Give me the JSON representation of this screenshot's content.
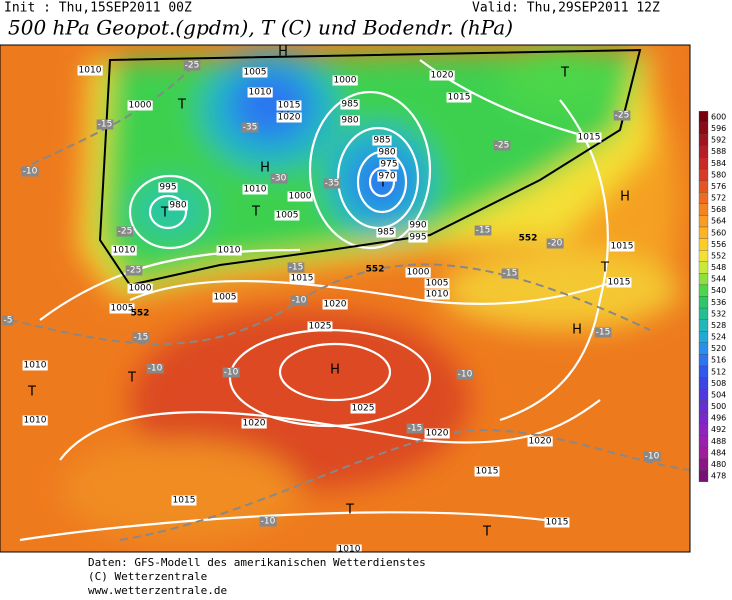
{
  "header": {
    "init": "Init : Thu,15SEP2011 00Z",
    "valid": "Valid: Thu,29SEP2011 12Z",
    "title": "500 hPa Geopot.(gpdm), T (C) und Bodendr. (hPa)"
  },
  "map": {
    "centers": [
      "H",
      "H",
      "H",
      "T",
      "T",
      "T",
      "T",
      "T",
      "H",
      "T",
      "H",
      "H",
      "T",
      "T",
      "T",
      "T"
    ],
    "isobar_labels": [
      "1010",
      "1000",
      "1005",
      "1010",
      "1015",
      "1020",
      "1000",
      "985",
      "980",
      "985",
      "980",
      "975",
      "970",
      "995",
      "980",
      "1010",
      "1000",
      "1005",
      "985",
      "990",
      "995",
      "1000",
      "1005",
      "1010",
      "1020",
      "1015",
      "1015",
      "1010",
      "1005",
      "1015",
      "1020",
      "1025",
      "1010",
      "1000",
      "1005",
      "1010",
      "1010",
      "1025",
      "1020",
      "1020",
      "1020",
      "1015",
      "1015",
      "1015",
      "1015",
      "1015",
      "1010"
    ],
    "temperature_labels": [
      "-25",
      "-15",
      "-10",
      "-25",
      "-25",
      "-35",
      "-30",
      "-35",
      "-25",
      "-25",
      "-20",
      "-15",
      "-15",
      "-10",
      "-15",
      "-10",
      "-10",
      "-15",
      "-15",
      "-10",
      "-10",
      "-10",
      "-15",
      "-5"
    ],
    "contour_labels": [
      "552",
      "552",
      "552"
    ]
  },
  "legend": {
    "labels": [
      "600",
      "596",
      "592",
      "588",
      "584",
      "580",
      "576",
      "572",
      "568",
      "564",
      "560",
      "556",
      "552",
      "548",
      "544",
      "540",
      "536",
      "532",
      "528",
      "524",
      "520",
      "516",
      "512",
      "508",
      "504",
      "500",
      "496",
      "492",
      "488",
      "484",
      "480",
      "478"
    ],
    "colors": [
      "#7a0010",
      "#8c0a14",
      "#a0141e",
      "#b41e28",
      "#c82a28",
      "#d83c26",
      "#e45424",
      "#ee6c22",
      "#f48420",
      "#f89c22",
      "#fcb426",
      "#fccc2c",
      "#f4e034",
      "#c8e83a",
      "#8ce040",
      "#4cd64a",
      "#2cc868",
      "#22c090",
      "#20b8b8",
      "#20a8d8",
      "#2890ec",
      "#2c74f0",
      "#3058ec",
      "#3c44e4",
      "#5038dc",
      "#6430d4",
      "#7828cc",
      "#8c24c0",
      "#9c20b0",
      "#a01c9c",
      "#8c1488",
      "#781078"
    ]
  },
  "footer": {
    "lines": [
      "Daten: GFS-Modell des amerikanischen Wetterdienstes",
      "(C) Wetterzentrale",
      "www.wetterzentrale.de"
    ]
  }
}
